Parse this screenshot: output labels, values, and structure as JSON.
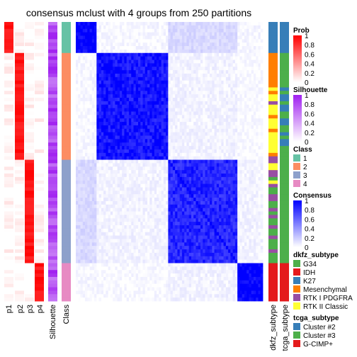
{
  "chart_data": {
    "type": "heatmap",
    "title": "consensus mclust with 4 groups from 250 partitions",
    "column_labels": [
      "p1",
      "p2",
      "p3",
      "p4",
      "Silhouette",
      "Class",
      "dkfz_subtype",
      "tcga_subtype"
    ],
    "groups": [
      {
        "class": 1,
        "n_samples": 9
      },
      {
        "class": 2,
        "n_samples": 31
      },
      {
        "class": 3,
        "n_samples": 30
      },
      {
        "class": 4,
        "n_samples": 11
      }
    ],
    "consensus_blocks": [
      [
        1.0,
        0.03,
        0.15,
        0.03
      ],
      [
        0.03,
        0.92,
        0.05,
        0.02
      ],
      [
        0.15,
        0.05,
        0.85,
        0.05
      ],
      [
        0.03,
        0.02,
        0.05,
        1.0
      ]
    ],
    "legends": [
      {
        "title": "Prob",
        "ticks": [
          "1",
          "0.8",
          "0.6",
          "0.4",
          "0.2",
          "0"
        ],
        "colors": [
          "#ff0000",
          "#ffffff"
        ]
      },
      {
        "title": "Silhouette",
        "ticks": [
          "1",
          "0.8",
          "0.6",
          "0.4",
          "0.2",
          "0"
        ],
        "colors": [
          "#a020f0",
          "#ffffff"
        ]
      },
      {
        "title": "Class",
        "items": [
          {
            "label": "1",
            "color": "#66c2a5"
          },
          {
            "label": "2",
            "color": "#fc8d62"
          },
          {
            "label": "3",
            "color": "#8da0cb"
          },
          {
            "label": "4",
            "color": "#e78ac3"
          }
        ]
      },
      {
        "title": "Consensus",
        "ticks": [
          "1",
          "0.8",
          "0.6",
          "0.4",
          "0.2",
          "0"
        ],
        "colors": [
          "#0000ff",
          "#ffffff"
        ]
      },
      {
        "title": "dkfz_subtype",
        "items": [
          {
            "label": "G34",
            "color": "#4daf4a"
          },
          {
            "label": "IDH",
            "color": "#e41a1c"
          },
          {
            "label": "K27",
            "color": "#377eb8"
          },
          {
            "label": "Mesenchymal",
            "color": "#ff7f00"
          },
          {
            "label": "RTK I PDGFRA",
            "color": "#984ea3"
          },
          {
            "label": "RTK II Classic",
            "color": "#ffff33"
          }
        ]
      },
      {
        "title": "tcga_subtype",
        "items": [
          {
            "label": "Cluster #2",
            "color": "#377eb8"
          },
          {
            "label": "Cluster #3",
            "color": "#4daf4a"
          },
          {
            "label": "G-CIMP+",
            "color": "#e41a1c"
          }
        ]
      }
    ]
  }
}
